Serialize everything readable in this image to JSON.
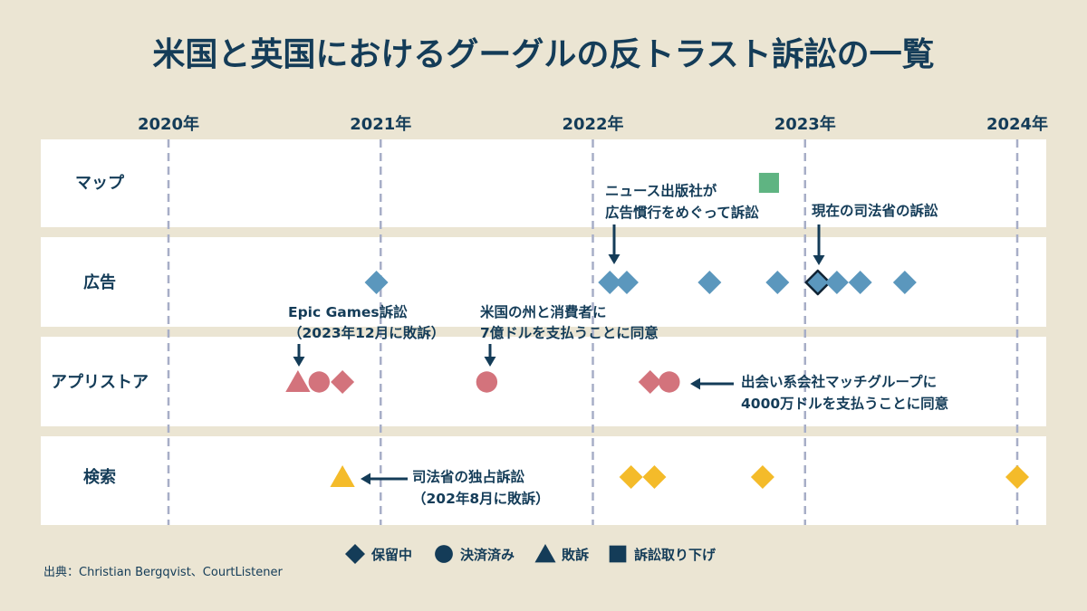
{
  "title": "米国と英国におけるグーグルの反トラスト訴訟の一覧",
  "source": "出典：Christian Bergqvist、CourtListener",
  "colors": {
    "background": "#ebe5d3",
    "panel": "#ffffff",
    "text": "#143c58",
    "grid": "#a7aec7",
    "ads": "#5b97bd",
    "app_store": "#d3737c",
    "search": "#f4bb2a",
    "maps": "#5fb482"
  },
  "chart_data": {
    "type": "scatter",
    "title": "米国と英国におけるグーグルの反トラスト訴訟の一覧",
    "x_ticks": [
      "2020年",
      "2021年",
      "2022年",
      "2023年",
      "2024年"
    ],
    "xlim": [
      2020,
      2024
    ],
    "grid": "vertical dashed at each year",
    "categories": [
      "マップ",
      "広告",
      "アプリストア",
      "検索"
    ],
    "legend_position": "bottom-center",
    "legend": [
      {
        "status": "pending",
        "label": "保留中",
        "shape": "diamond"
      },
      {
        "status": "settled",
        "label": "決済済み",
        "shape": "circle"
      },
      {
        "status": "lost",
        "label": "敗訴",
        "shape": "triangle"
      },
      {
        "status": "dropped",
        "label": "訴訟取り下げ",
        "shape": "square"
      }
    ],
    "series": [
      {
        "category": "マップ",
        "color": "#5fb482",
        "points": [
          {
            "x": 2022.83,
            "status": "dropped"
          }
        ]
      },
      {
        "category": "広告",
        "color": "#5b97bd",
        "points": [
          {
            "x": 2020.98,
            "status": "pending"
          },
          {
            "x": 2022.08,
            "status": "pending"
          },
          {
            "x": 2022.16,
            "status": "pending"
          },
          {
            "x": 2022.55,
            "status": "pending"
          },
          {
            "x": 2022.87,
            "status": "pending"
          },
          {
            "x": 2023.06,
            "status": "pending",
            "highlight": true
          },
          {
            "x": 2023.15,
            "status": "pending"
          },
          {
            "x": 2023.26,
            "status": "pending"
          },
          {
            "x": 2023.47,
            "status": "pending"
          }
        ]
      },
      {
        "category": "アプリストア",
        "color": "#d3737c",
        "points": [
          {
            "x": 2020.61,
            "status": "lost"
          },
          {
            "x": 2020.71,
            "status": "settled"
          },
          {
            "x": 2020.82,
            "status": "pending"
          },
          {
            "x": 2021.5,
            "status": "settled"
          },
          {
            "x": 2022.27,
            "status": "pending"
          },
          {
            "x": 2022.36,
            "status": "settled"
          }
        ]
      },
      {
        "category": "検索",
        "color": "#f4bb2a",
        "points": [
          {
            "x": 2020.82,
            "status": "lost"
          },
          {
            "x": 2022.18,
            "status": "pending"
          },
          {
            "x": 2022.29,
            "status": "pending"
          },
          {
            "x": 2022.8,
            "status": "pending"
          },
          {
            "x": 2024.0,
            "status": "pending"
          }
        ]
      }
    ],
    "annotations": [
      {
        "lines": [
          "ニュース出版社が",
          "広告慣行をめぐって訴訟"
        ],
        "target_category": "広告",
        "target_x": 2022.08
      },
      {
        "lines": [
          "現在の司法省の訴訟"
        ],
        "target_category": "広告",
        "target_x": 2023.06
      },
      {
        "lines": [
          "Epic Games訴訟",
          "（2023年12月に敗訴）"
        ],
        "target_category": "アプリストア",
        "target_x": 2020.62
      },
      {
        "lines": [
          "米国の州と消費者に",
          "7億ドルを支払うことに同意"
        ],
        "target_category": "アプリストア",
        "target_x": 2021.5
      },
      {
        "lines": [
          "出会い系会社マッチグループに",
          "4000万ドルを支払うことに同意"
        ],
        "target_category": "アプリストア",
        "target_x": 2022.36
      },
      {
        "lines": [
          "司法省の独占訴訟",
          "（202年8月に敗訴）"
        ],
        "target_category": "検索",
        "target_x": 2020.82
      }
    ]
  }
}
